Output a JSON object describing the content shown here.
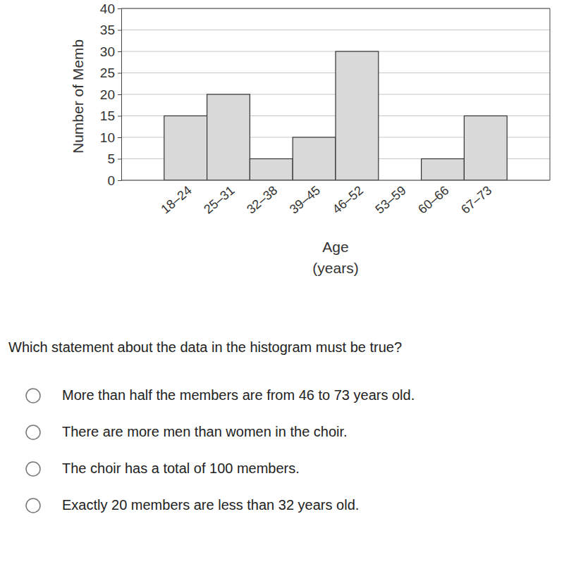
{
  "chart_data": {
    "type": "bar",
    "ylabel": "Number of Memb",
    "xlabel": "Age\n(years)",
    "categories": [
      "18–24",
      "25–31",
      "32–38",
      "39–45",
      "46–52",
      "53–59",
      "60–66",
      "67–73"
    ],
    "values": [
      15,
      20,
      5,
      10,
      30,
      0,
      5,
      15
    ],
    "color": "#d9d9d9",
    "ylim": [
      0,
      40
    ],
    "yticks": [
      0,
      5,
      10,
      15,
      20,
      25,
      30,
      35,
      40
    ],
    "grid": true
  },
  "question": "Which statement about the data in the histogram must be true?",
  "options": [
    "More than half the members are from 46 to 73 years old.",
    "There are more men than women in the choir.",
    "The choir has a total of 100 members.",
    "Exactly 20 members are less than 32 years old."
  ]
}
